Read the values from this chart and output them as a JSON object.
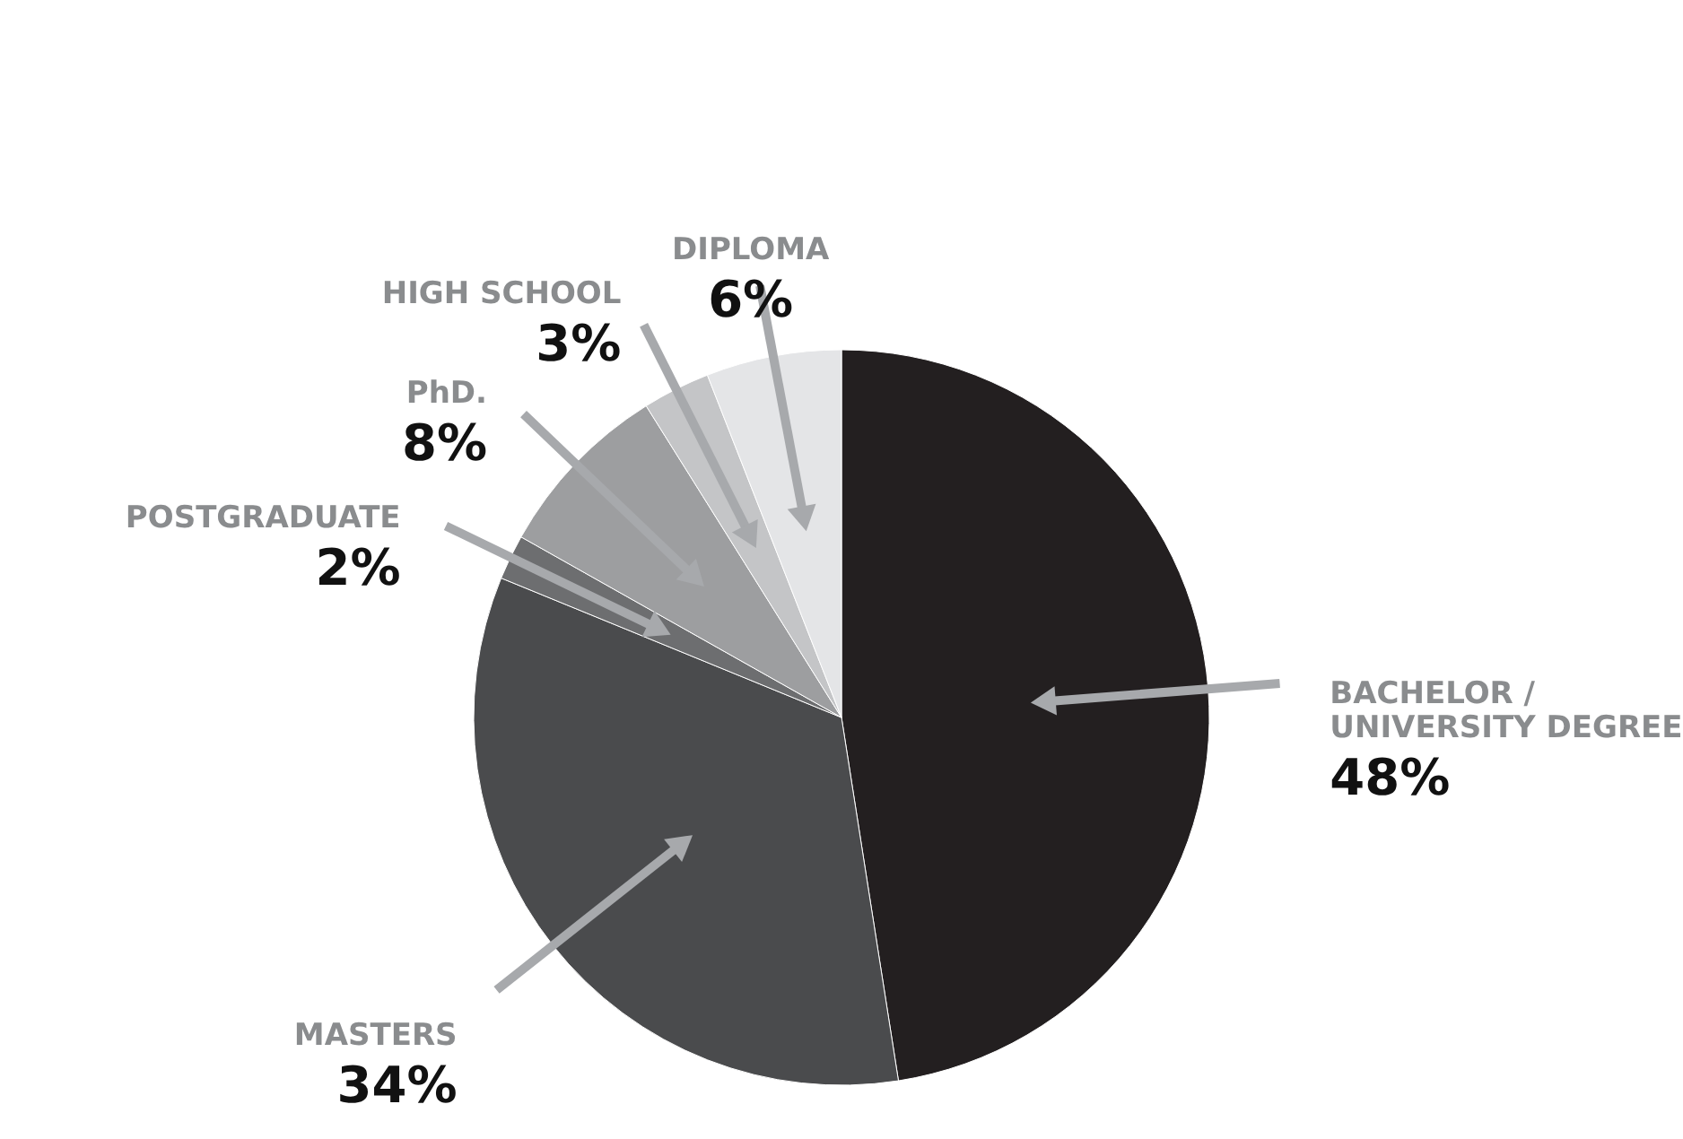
{
  "chart_data": {
    "type": "pie",
    "categories": [
      "BACHELOR / UNIVERSITY DEGREE",
      "MASTERS",
      "POSTGRADUATE",
      "PhD.",
      "HIGH SCHOOL",
      "DIPLOMA"
    ],
    "values": [
      48,
      34,
      2,
      8,
      3,
      6
    ],
    "colors": [
      "#231f20",
      "#4a4b4d",
      "#6d6e70",
      "#9d9ea0",
      "#c4c5c7",
      "#e4e5e7"
    ],
    "value_labels": [
      "48%",
      "34%",
      "2%",
      "8%",
      "3%",
      "6%"
    ]
  }
}
